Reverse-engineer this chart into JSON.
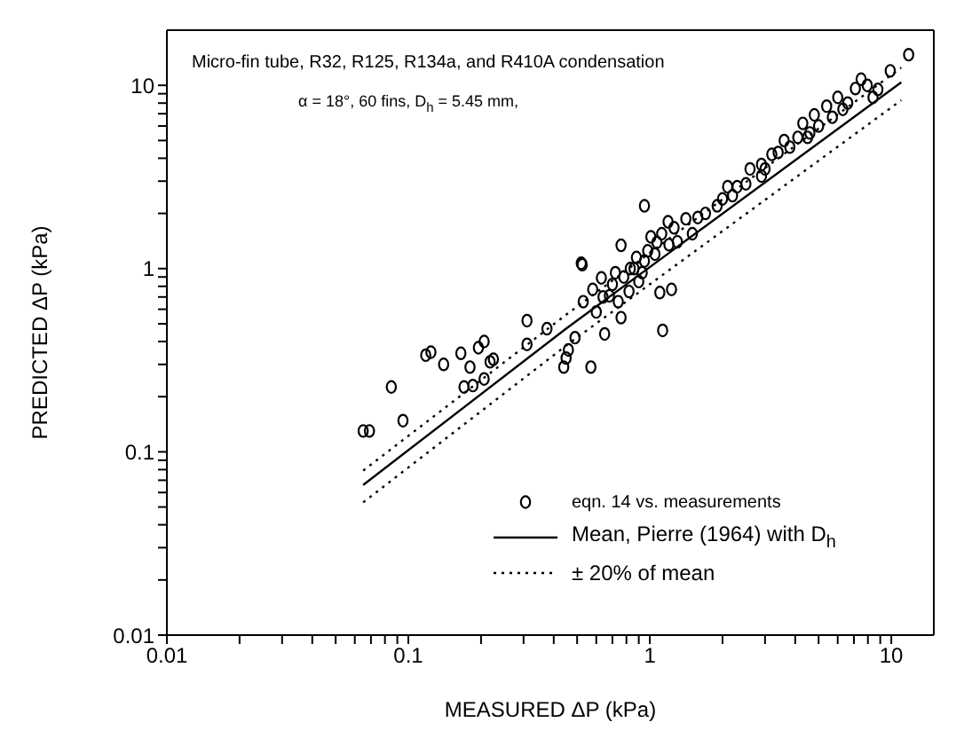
{
  "chart_data": {
    "type": "scatter",
    "xlabel": "MEASURED ΔP (kPa)",
    "ylabel": "PREDICTED ΔP (kPa)",
    "log": "xy",
    "xlim": [
      0.01,
      15
    ],
    "ylim": [
      0.01,
      20
    ],
    "xticks": [
      0.01,
      {
        "value": 0.02,
        "label": null
      },
      {
        "value": 0.03,
        "label": null
      },
      {
        "value": 0.04,
        "label": null
      },
      {
        "value": 0.05,
        "label": null
      },
      {
        "value": 0.06,
        "label": null
      },
      {
        "value": 0.07,
        "label": null
      },
      {
        "value": 0.08,
        "label": null
      },
      {
        "value": 0.09,
        "label": null
      },
      0.1,
      {
        "value": 0.2,
        "label": null
      },
      {
        "value": 0.3,
        "label": null
      },
      {
        "value": 0.4,
        "label": null
      },
      {
        "value": 0.5,
        "label": null
      },
      {
        "value": 0.6,
        "label": null
      },
      {
        "value": 0.7,
        "label": null
      },
      {
        "value": 0.8,
        "label": null
      },
      {
        "value": 0.9,
        "label": null
      },
      1,
      {
        "value": 2,
        "label": null
      },
      {
        "value": 3,
        "label": null
      },
      {
        "value": 4,
        "label": null
      },
      {
        "value": 5,
        "label": null
      },
      {
        "value": 6,
        "label": null
      },
      {
        "value": 7,
        "label": null
      },
      {
        "value": 8,
        "label": null
      },
      {
        "value": 9,
        "label": null
      },
      10
    ],
    "yticks": [
      0.01,
      {
        "value": 0.02,
        "label": null
      },
      {
        "value": 0.03,
        "label": null
      },
      {
        "value": 0.04,
        "label": null
      },
      {
        "value": 0.05,
        "label": null
      },
      {
        "value": 0.06,
        "label": null
      },
      {
        "value": 0.07,
        "label": null
      },
      {
        "value": 0.08,
        "label": null
      },
      {
        "value": 0.09,
        "label": null
      },
      0.1,
      {
        "value": 0.2,
        "label": null
      },
      {
        "value": 0.3,
        "label": null
      },
      {
        "value": 0.4,
        "label": null
      },
      {
        "value": 0.5,
        "label": null
      },
      {
        "value": 0.6,
        "label": null
      },
      {
        "value": 0.7,
        "label": null
      },
      {
        "value": 0.8,
        "label": null
      },
      {
        "value": 0.9,
        "label": null
      },
      1,
      {
        "value": 2,
        "label": null
      },
      {
        "value": 3,
        "label": null
      },
      {
        "value": 4,
        "label": null
      },
      {
        "value": 5,
        "label": null
      },
      {
        "value": 6,
        "label": null
      },
      {
        "value": 7,
        "label": null
      },
      {
        "value": 8,
        "label": null
      },
      {
        "value": 9,
        "label": null
      },
      10
    ],
    "legend": "bottom right",
    "annotations": [
      "Micro-fin tube, R32, R125, R134a, and R410A condensation",
      "α = 18°, 60 fins, D$_{h}$ = 5.45 mm,"
    ],
    "series": [
      {
        "name": "eqn. 14 vs. measurements",
        "marker": "circle",
        "color": "#000000",
        "x": [
          0.065,
          0.069,
          0.085,
          0.095,
          0.118,
          0.124,
          0.14,
          0.165,
          0.18,
          0.17,
          0.185,
          0.195,
          0.206,
          0.218,
          0.225,
          0.206,
          0.31,
          0.31,
          0.375,
          0.44,
          0.45,
          0.46,
          0.49,
          0.525,
          0.57,
          0.53,
          0.58,
          0.63,
          0.65,
          0.76,
          1.13,
          0.68,
          0.7,
          0.74,
          0.78,
          0.82,
          0.86,
          0.9,
          0.95,
          0.6,
          0.64,
          0.72,
          1.23,
          1.1,
          0.95,
          0.52,
          0.76,
          1.01,
          1.07,
          1.12,
          1.19,
          1.26,
          1.41,
          1.5,
          1.58,
          1.9,
          2.0,
          2.1,
          2.3,
          2.6,
          2.9,
          2.9,
          3.2,
          3.4,
          3.6,
          4.1,
          4.3,
          4.6,
          4.8,
          5.4,
          5.7,
          6.0,
          6.3,
          7.1,
          7.5,
          7.95,
          8.4,
          9.9,
          11.8,
          0.88,
          0.98,
          1.3,
          1.7,
          2.2,
          2.5,
          3.0,
          3.8,
          4.5,
          5.0,
          6.6,
          8.8,
          1.05,
          1.2,
          0.83,
          0.93
        ],
        "values": [
          0.13,
          0.13,
          0.226,
          0.148,
          0.337,
          0.35,
          0.3,
          0.345,
          0.29,
          0.226,
          0.23,
          0.37,
          0.4,
          0.31,
          0.32,
          0.25,
          0.52,
          0.386,
          0.47,
          0.29,
          0.325,
          0.36,
          0.42,
          1.05,
          0.29,
          0.66,
          0.77,
          0.89,
          0.44,
          0.54,
          0.46,
          0.71,
          0.82,
          0.66,
          0.9,
          0.75,
          1.0,
          0.85,
          1.1,
          0.58,
          0.7,
          0.95,
          0.77,
          0.74,
          2.2,
          1.07,
          1.34,
          1.49,
          1.39,
          1.55,
          1.8,
          1.67,
          1.87,
          1.55,
          1.9,
          2.2,
          2.4,
          2.8,
          2.8,
          3.5,
          3.7,
          3.2,
          4.2,
          4.3,
          5.0,
          5.2,
          6.2,
          5.5,
          6.9,
          7.7,
          6.7,
          8.6,
          7.4,
          9.6,
          10.8,
          10,
          8.6,
          12,
          14.7,
          1.15,
          1.25,
          1.4,
          2.0,
          2.5,
          2.9,
          3.5,
          4.6,
          5.2,
          6.0,
          8.0,
          9.5,
          1.2,
          1.35,
          1.0,
          0.95
        ]
      },
      {
        "name": "Mean, Pierre (1964) with D$_{h}$",
        "type": "line",
        "color": "#000000",
        "line_style": "solid",
        "x": [
          0.065,
          0.45,
          11
        ],
        "values": [
          0.066,
          0.47,
          10.4
        ]
      },
      {
        "name": "± 20% of mean",
        "type": "line",
        "color": "#000000",
        "line_style": "dotted",
        "x": [
          0.065,
          0.45,
          11
        ],
        "values": [
          0.079,
          0.56,
          12.5
        ]
      },
      {
        "type": "line",
        "color": "#000000",
        "line_style": "dotted",
        "x": [
          0.065,
          0.45,
          11
        ],
        "values": [
          0.053,
          0.38,
          8.3
        ]
      }
    ]
  }
}
